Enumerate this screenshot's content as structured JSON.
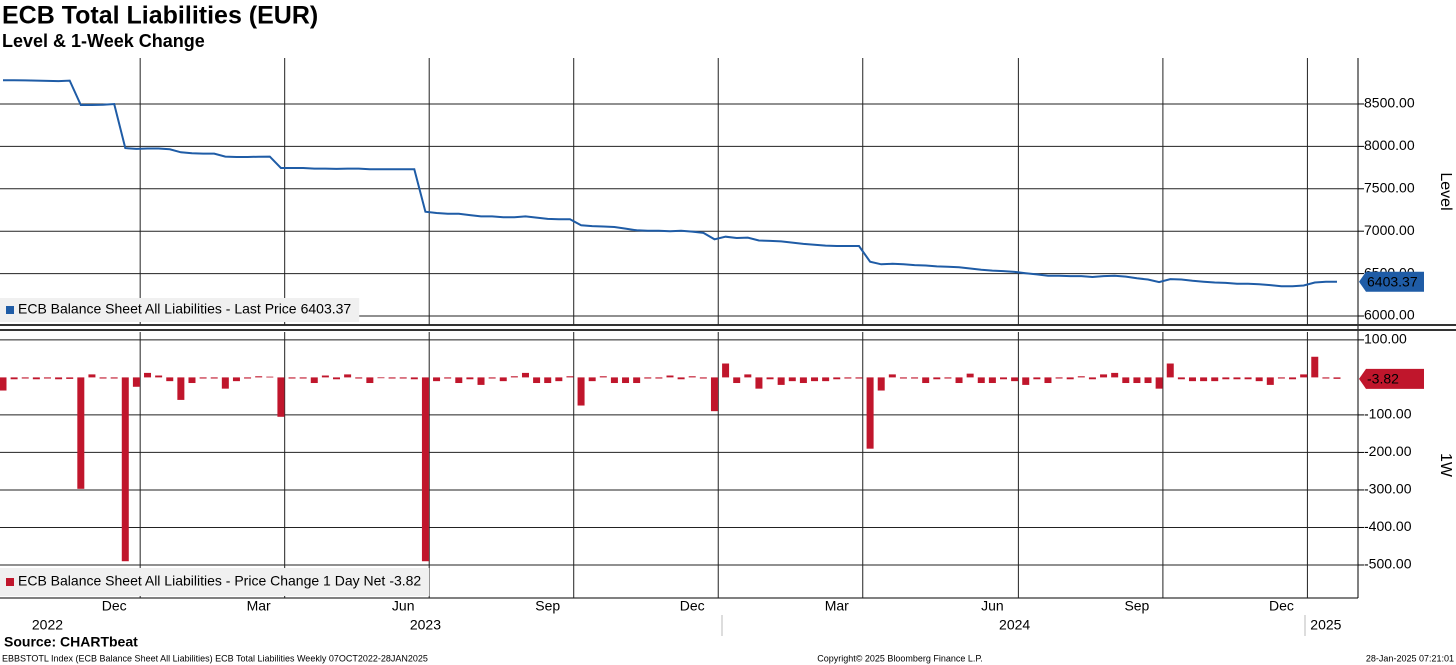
{
  "chart_data": {
    "type": "panels",
    "title": "ECB Total Liabilities (EUR)",
    "subtitle": "Level & 1-Week Change",
    "source": "Source: CHARTbeat",
    "footnote": "EBBSTOTL Index (ECB Balance Sheet All Liabilities) ECB Total Liabilities  Weekly 07OCT2022-28JAN2025",
    "copyright": "Copyright© 2025 Bloomberg Finance L.P.",
    "timestamp": "28-Jan-2025 07:21:01",
    "grid": true,
    "categories": [
      null,
      null,
      null,
      null,
      null,
      null,
      null,
      null,
      null,
      null,
      "Dec",
      null,
      null,
      null,
      null,
      null,
      null,
      null,
      null,
      null,
      null,
      null,
      null,
      "Mar",
      null,
      null,
      null,
      null,
      null,
      null,
      null,
      null,
      null,
      null,
      null,
      null,
      "Jun",
      null,
      null,
      null,
      null,
      null,
      null,
      null,
      null,
      null,
      null,
      null,
      null,
      "Sep",
      null,
      null,
      null,
      null,
      null,
      null,
      null,
      null,
      null,
      null,
      null,
      null,
      "Dec",
      null,
      null,
      null,
      null,
      null,
      null,
      null,
      null,
      null,
      null,
      null,
      null,
      "Mar",
      null,
      null,
      null,
      null,
      null,
      null,
      null,
      null,
      null,
      null,
      null,
      null,
      null,
      "Jun",
      null,
      null,
      null,
      null,
      null,
      null,
      null,
      null,
      null,
      null,
      null,
      null,
      "Sep",
      null,
      null,
      null,
      null,
      null,
      null,
      null,
      null,
      null,
      null,
      null,
      null,
      "Dec",
      null,
      null,
      null,
      null,
      null
    ],
    "year_labels": [
      null,
      null,
      null,
      null,
      "2022",
      null,
      null,
      null,
      null,
      null,
      null,
      null,
      null,
      null,
      null,
      null,
      null,
      null,
      null,
      null,
      null,
      null,
      null,
      null,
      null,
      null,
      null,
      null,
      null,
      null,
      null,
      null,
      null,
      null,
      null,
      null,
      null,
      null,
      "2023",
      null,
      null,
      null,
      null,
      null,
      null,
      null,
      null,
      null,
      null,
      null,
      null,
      null,
      null,
      null,
      null,
      null,
      null,
      null,
      null,
      null,
      null,
      null,
      null,
      null,
      null,
      null,
      null,
      null,
      null,
      null,
      null,
      null,
      null,
      null,
      null,
      null,
      null,
      null,
      null,
      null,
      null,
      null,
      null,
      null,
      null,
      null,
      null,
      null,
      null,
      null,
      null,
      "2024",
      null,
      null,
      null,
      null,
      null,
      null,
      null,
      null,
      null,
      null,
      null,
      null,
      null,
      null,
      null,
      null,
      null,
      null,
      null,
      null,
      null,
      null,
      null,
      null,
      null,
      null,
      null,
      "2025",
      null
    ],
    "panels": [
      {
        "type": "line",
        "y_label": "Level",
        "ylim": [
          5894,
          9042
        ],
        "yticks": [
          {
            "value": 6000,
            "label": "6000.00"
          },
          {
            "value": 6500,
            "label": "6500.00"
          },
          {
            "value": 7000,
            "label": "7000.00"
          },
          {
            "value": 7500,
            "label": "7500.00"
          },
          {
            "value": 8000,
            "label": "8000.00"
          },
          {
            "value": 8500,
            "label": "8500.00"
          }
        ],
        "series": [
          {
            "name": "ECB Balance Sheet All Liabilities - Last Price",
            "color": "#1f5ca6",
            "values": [
              8780,
              8780,
              8778,
              8775,
              8772,
              8770,
              8775,
              8488,
              8488,
              8490,
              8500,
              7980,
              7970,
              7975,
              7975,
              7965,
              7930,
              7920,
              7915,
              7915,
              7880,
              7875,
              7875,
              7878,
              7880,
              7745,
              7745,
              7745,
              7738,
              7738,
              7735,
              7738,
              7738,
              7730,
              7730,
              7730,
              7730,
              7730,
              7230,
              7215,
              7205,
              7205,
              7190,
              7175,
              7175,
              7165,
              7165,
              7175,
              7160,
              7145,
              7140,
              7140,
              7070,
              7060,
              7055,
              7050,
              7030,
              7010,
              7005,
              7005,
              7000,
              7005,
              6995,
              6980,
              6905,
              6935,
              6920,
              6925,
              6890,
              6885,
              6880,
              6865,
              6850,
              6840,
              6830,
              6825,
              6825,
              6825,
              6640,
              6610,
              6615,
              6610,
              6600,
              6595,
              6585,
              6580,
              6575,
              6560,
              6545,
              6535,
              6530,
              6520,
              6505,
              6490,
              6475,
              6475,
              6470,
              6470,
              6460,
              6470,
              6475,
              6465,
              6445,
              6430,
              6400,
              6435,
              6430,
              6415,
              6405,
              6395,
              6390,
              6380,
              6380,
              6375,
              6365,
              6350,
              6350,
              6360,
              6395,
              6405,
              6403.37
            ]
          }
        ]
      },
      {
        "type": "bar",
        "y_label": "1W",
        "ylim": [
          -588,
          121
        ],
        "yticks": [
          {
            "value": -500,
            "label": "-500.00"
          },
          {
            "value": -400,
            "label": "-400.00"
          },
          {
            "value": -300,
            "label": "-300.00"
          },
          {
            "value": -200,
            "label": "-200.00"
          },
          {
            "value": -100,
            "label": "-100.00"
          },
          {
            "value": 100,
            "label": "100.00"
          }
        ],
        "series": [
          {
            "name": "ECB Balance Sheet All Liabilities - Price Change 1 Day Net",
            "color": "#c0162c",
            "values": [
              -35,
              -5,
              -3,
              -5,
              -3,
              -5,
              -4,
              -297,
              8,
              -3,
              -3,
              -490,
              -25,
              12,
              5,
              -10,
              -60,
              -15,
              -3,
              -3,
              -30,
              -10,
              -3,
              3,
              2,
              -105,
              -3,
              -3,
              -15,
              5,
              -5,
              8,
              -3,
              -15,
              -2,
              -3,
              -3,
              -5,
              -490,
              -10,
              -3,
              -15,
              -5,
              -20,
              -3,
              -10,
              3,
              12,
              -15,
              -15,
              -10,
              3,
              -75,
              -10,
              3,
              -15,
              -15,
              -15,
              -3,
              -3,
              5,
              -5,
              3,
              -3,
              -90,
              37,
              -15,
              8,
              -30,
              -5,
              -20,
              -10,
              -15,
              -10,
              -10,
              -5,
              -3,
              -3,
              -190,
              -35,
              8,
              -3,
              -3,
              -15,
              -5,
              -3,
              -15,
              10,
              -15,
              -15,
              -5,
              -10,
              -20,
              -5,
              -15,
              -3,
              -5,
              3,
              -5,
              8,
              12,
              -15,
              -15,
              -15,
              -30,
              37,
              -5,
              -10,
              -10,
              -10,
              -5,
              -5,
              -5,
              -10,
              -20,
              -3,
              -5,
              8,
              55,
              -3,
              -3.82
            ]
          }
        ]
      }
    ]
  }
}
